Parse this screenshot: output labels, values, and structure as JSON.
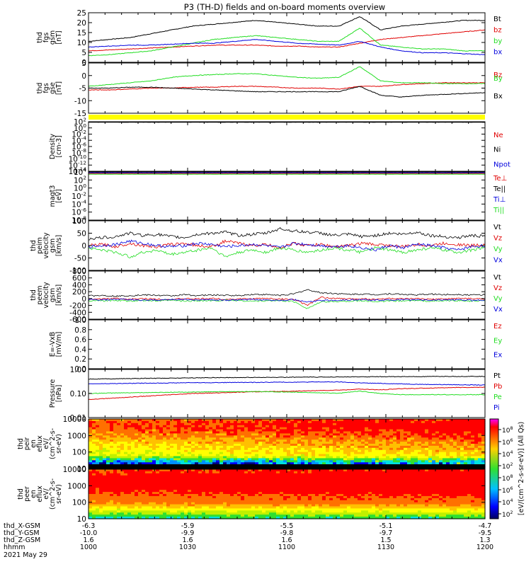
{
  "title": "P3 (TH-D) fields and on-board moments overview",
  "colors": {
    "black": "#000000",
    "red": "#e00000",
    "green": "#22dd22",
    "blue": "#0000dd",
    "yellow": "#ffff00"
  },
  "chart_data": [
    {
      "type": "line",
      "ylabel": [
        "thd",
        "fgs",
        "gsm",
        "[nT]"
      ],
      "yticks": [
        "25",
        "20",
        "15",
        "10",
        "5",
        "0"
      ],
      "ylim": [
        0,
        26
      ],
      "legend": [
        "Bt",
        "bz",
        "by",
        "bx"
      ],
      "series": [
        {
          "name": "Bt",
          "color": "#000000",
          "values": [
            11,
            12,
            13,
            15,
            17,
            19,
            20,
            21,
            22,
            21,
            20,
            19,
            19,
            24,
            17,
            19,
            20,
            21,
            22,
            22
          ]
        },
        {
          "name": "bz",
          "color": "#e00000",
          "values": [
            6,
            6.5,
            7,
            7.5,
            8,
            8.5,
            9,
            9,
            9,
            8.5,
            8.5,
            8,
            8,
            10,
            12,
            13,
            14,
            15,
            16,
            17
          ]
        },
        {
          "name": "by",
          "color": "#22dd22",
          "values": [
            3.5,
            4,
            5,
            6,
            8,
            10,
            12,
            13,
            14,
            13,
            12,
            11,
            11,
            18,
            9,
            8,
            7,
            7,
            6,
            6
          ]
        },
        {
          "name": "bx",
          "color": "#0000dd",
          "values": [
            8,
            8.5,
            9,
            9,
            9.5,
            10,
            10,
            11,
            12,
            11,
            10,
            9.5,
            9,
            11,
            8,
            6,
            5,
            5,
            4.5,
            4
          ]
        }
      ]
    },
    {
      "type": "line",
      "ylabel": [
        "thd",
        "fgs",
        "gse",
        "[nT]"
      ],
      "yticks": [
        "5",
        "0",
        "-5",
        "-10",
        "-15"
      ],
      "ylim": [
        -18,
        10
      ],
      "legend": [
        "Bz",
        "By",
        "Bx"
      ],
      "series": [
        {
          "name": "Bz",
          "color": "#e00000",
          "values": [
            -5,
            -5,
            -4.5,
            -4,
            -4,
            -3.5,
            -3.5,
            -3,
            -3,
            -3.5,
            -4,
            -4,
            -4.5,
            -3,
            -3,
            -2,
            -1.5,
            -1,
            -1,
            -1
          ]
        },
        {
          "name": "By",
          "color": "#22dd22",
          "values": [
            -3,
            -2,
            -1,
            0,
            2,
            3,
            3.5,
            4,
            4,
            3,
            2,
            1.5,
            2,
            8,
            0,
            -1,
            -1,
            -1.5,
            -1.5,
            -1.5
          ]
        },
        {
          "name": "Bx",
          "color": "#000000",
          "values": [
            -4,
            -4,
            -3.5,
            -3.5,
            -4,
            -4.5,
            -5,
            -5.5,
            -6,
            -6,
            -6,
            -6,
            -6,
            -3,
            -8,
            -9,
            -8,
            -7.5,
            -7,
            -6.5
          ]
        }
      ]
    },
    {
      "type": "line",
      "ylabel": [
        "Density",
        "[cm-3]"
      ],
      "yticks": [
        "10^2",
        "10^0",
        "10^-2",
        "10^-4",
        "10^-6",
        "10^-8",
        "10^-10",
        "10^-12",
        "10^-14"
      ],
      "ylim": [
        -15,
        2
      ],
      "yscale": "log",
      "legend": [
        "Ne",
        "Ni",
        "Npot"
      ],
      "series": [
        {
          "name": "Ne",
          "color": "#e00000",
          "values": [
            1.9,
            1.9,
            1.9,
            1.9,
            1.9,
            1.9,
            1.9,
            1.9,
            1.9,
            1.9,
            1.9,
            1.9,
            1.9,
            1.9,
            1.9,
            1.9,
            1.9,
            1.9,
            1.9,
            1.9
          ]
        },
        {
          "name": "Ni",
          "color": "#000000",
          "values": [
            1.8,
            1.8,
            1.8,
            1.8,
            1.8,
            1.8,
            1.8,
            1.8,
            1.8,
            1.8,
            1.8,
            1.8,
            1.8,
            1.8,
            1.8,
            1.8,
            1.8,
            1.8,
            1.8,
            1.8
          ]
        }
      ]
    },
    {
      "type": "line",
      "ylabel": [
        "magt3",
        "[eV]"
      ],
      "yticks": [
        "10^4",
        "10^2",
        "10^0",
        "10^-2",
        "10^-4",
        "10^-6",
        "10^-8"
      ],
      "ylim": [
        -9,
        4
      ],
      "yscale": "log",
      "legend": [
        "Te⊥",
        "Te||",
        "Ti⊥",
        "Ti||"
      ],
      "series": [
        {
          "name": "Te⊥",
          "color": "#e00000",
          "values": [
            3.6,
            3.6,
            3.6,
            3.6,
            3.6,
            3.6,
            3.6,
            3.6,
            3.6,
            3.6,
            3.6,
            3.6,
            3.6,
            3.6,
            3.6,
            3.6,
            3.6,
            3.6,
            3.6,
            3.6
          ]
        },
        {
          "name": "Ti⊥",
          "color": "#0000dd",
          "values": [
            3.8,
            3.8,
            3.8,
            3.8,
            3.8,
            3.8,
            3.8,
            3.8,
            3.8,
            3.8,
            3.8,
            3.8,
            3.8,
            3.8,
            3.8,
            3.8,
            3.8,
            3.8,
            3.8,
            3.8
          ]
        },
        {
          "name": "Ti||",
          "color": "#22dd22",
          "values": [
            3.4,
            3.4,
            3.4,
            3.4,
            3.4,
            3.4,
            3.4,
            3.4,
            3.4,
            3.4,
            3.4,
            3.4,
            3.4,
            3.4,
            3.4,
            3.4,
            3.4,
            3.4,
            3.4,
            3.4
          ]
        }
      ]
    },
    {
      "type": "line",
      "ylabel": [
        "thd",
        "peim",
        "velocity",
        "gsm",
        "[km/s]"
      ],
      "yticks": [
        "100",
        "50",
        "0",
        "-50",
        "-100"
      ],
      "ylim": [
        -110,
        110
      ],
      "legend": [
        "Vt",
        "Vz",
        "Vy",
        "Vx"
      ],
      "series": [
        {
          "name": "Vt",
          "color": "#000000",
          "values": [
            30,
            35,
            40,
            55,
            45,
            50,
            40,
            35,
            50,
            55,
            60,
            45,
            50,
            55,
            75,
            65,
            60,
            55,
            45,
            50,
            40,
            45,
            55,
            50,
            60,
            45,
            40,
            35,
            45,
            40
          ]
        },
        {
          "name": "Vz",
          "color": "#e00000",
          "values": [
            0,
            5,
            -5,
            10,
            0,
            -5,
            5,
            10,
            0,
            -5,
            20,
            10,
            0,
            5,
            -10,
            10,
            0,
            5,
            -5,
            0,
            10,
            5,
            0,
            -5,
            5,
            0,
            10,
            5,
            0,
            5
          ]
        },
        {
          "name": "Vy",
          "color": "#22dd22",
          "values": [
            -10,
            -20,
            -30,
            -50,
            -30,
            -20,
            -40,
            -30,
            -20,
            -10,
            -50,
            -30,
            -20,
            -30,
            -10,
            -20,
            -30,
            -20,
            -10,
            -20,
            -30,
            -10,
            -20,
            -30,
            -20,
            -10,
            -20,
            -30,
            -20,
            -10
          ]
        },
        {
          "name": "Vx",
          "color": "#0000dd",
          "values": [
            -5,
            0,
            5,
            20,
            10,
            0,
            -5,
            0,
            10,
            5,
            -5,
            0,
            5,
            0,
            -10,
            10,
            5,
            0,
            -5,
            0,
            -10,
            -20,
            0,
            -10,
            5,
            0,
            -10,
            -20,
            -5,
            0
          ]
        }
      ]
    },
    {
      "type": "line",
      "ylabel": [
        "thd",
        "peem",
        "velocity",
        "gsm",
        "[km/s]"
      ],
      "yticks": [
        "800",
        "600",
        "400",
        "200",
        "0",
        "-200",
        "-400",
        "-600"
      ],
      "ylim": [
        -650,
        900
      ],
      "legend": [
        "Vt",
        "Vz",
        "Vy",
        "Vx"
      ],
      "series": [
        {
          "name": "Vt",
          "color": "#000000",
          "values": [
            100,
            120,
            90,
            110,
            130,
            120,
            100,
            140,
            110,
            130,
            120,
            110,
            150,
            140,
            120,
            160,
            300,
            200,
            180,
            150,
            160,
            140,
            170,
            150,
            130,
            160,
            140,
            150,
            130,
            140
          ]
        },
        {
          "name": "Vz",
          "color": "#e00000",
          "values": [
            -20,
            0,
            20,
            -10,
            10,
            0,
            -20,
            10,
            0,
            20,
            -10,
            0,
            10,
            20,
            0,
            -10,
            -200,
            50,
            20,
            0,
            10,
            -10,
            20,
            0,
            10,
            -10,
            0,
            20,
            10,
            0
          ]
        },
        {
          "name": "Vy",
          "color": "#22dd22",
          "values": [
            -50,
            -60,
            -40,
            -70,
            -50,
            -60,
            -40,
            -70,
            -50,
            -60,
            -40,
            -50,
            -70,
            -60,
            -50,
            -80,
            -300,
            -100,
            -80,
            -70,
            -60,
            -80,
            -70,
            -60,
            -50,
            -70,
            -60,
            -50,
            -70,
            -60
          ]
        },
        {
          "name": "Vx",
          "color": "#0000dd",
          "values": [
            -20,
            -30,
            -10,
            -20,
            -40,
            -30,
            -20,
            -10,
            -30,
            -20,
            -40,
            -30,
            -20,
            -30,
            -40,
            -20,
            -100,
            -50,
            -40,
            -30,
            -20,
            -40,
            -30,
            -20,
            -30,
            -40,
            -20,
            -30,
            -40,
            -30
          ]
        }
      ]
    },
    {
      "type": "line",
      "ylabel": [
        "E=-VxB",
        "[mV/m]"
      ],
      "yticks": [
        "1.0",
        "0.8",
        "0.6",
        "0.4",
        "0.2",
        "0.0"
      ],
      "ylim": [
        0,
        1
      ],
      "legend": [
        "Ez",
        "Ey",
        "Ex"
      ],
      "series": []
    },
    {
      "type": "line",
      "ylabel": [
        "Pressure",
        "[nPa]"
      ],
      "yticks": [
        "1.00",
        "0.10",
        "0.01"
      ],
      "ylim": [
        -2,
        0
      ],
      "yscale": "log",
      "legend": [
        "Pt",
        "Pb",
        "Pe",
        "Pi"
      ],
      "series": [
        {
          "name": "Pt",
          "color": "#000000",
          "values": [
            -0.4,
            -0.39,
            -0.38,
            -0.37,
            -0.36,
            -0.35,
            -0.34,
            -0.34,
            -0.33,
            -0.33,
            -0.32,
            -0.32,
            -0.31,
            -0.31,
            -0.3,
            -0.3,
            -0.3,
            -0.29,
            -0.29,
            -0.29
          ]
        },
        {
          "name": "Pb",
          "color": "#e00000",
          "values": [
            -1.25,
            -1.2,
            -1.15,
            -1.1,
            -1.05,
            -1.0,
            -0.98,
            -0.95,
            -0.93,
            -0.92,
            -0.9,
            -0.88,
            -0.86,
            -0.82,
            -0.85,
            -0.8,
            -0.78,
            -0.76,
            -0.75,
            -0.74
          ]
        },
        {
          "name": "Pe",
          "color": "#22dd22",
          "values": [
            -1.0,
            -0.98,
            -0.97,
            -0.96,
            -0.95,
            -0.94,
            -0.93,
            -0.92,
            -0.92,
            -0.93,
            -0.95,
            -0.97,
            -0.99,
            -0.9,
            -1.0,
            -1.05,
            -1.05,
            -1.05,
            -1.05,
            -1.05
          ]
        },
        {
          "name": "Pi",
          "color": "#0000dd",
          "values": [
            -0.6,
            -0.59,
            -0.58,
            -0.57,
            -0.56,
            -0.55,
            -0.55,
            -0.54,
            -0.54,
            -0.53,
            -0.53,
            -0.52,
            -0.52,
            -0.56,
            -0.58,
            -0.6,
            -0.62,
            -0.63,
            -0.64,
            -0.65
          ]
        }
      ]
    },
    {
      "type": "heatmap",
      "ylabel": [
        "thd",
        "peir",
        "en",
        "eflux",
        "eV/",
        "(cm^2-s-",
        "sr-eV)"
      ],
      "yticks": [
        "10000",
        "1000",
        "100",
        "10"
      ]
    },
    {
      "type": "heatmap",
      "ylabel": [
        "thd",
        "peer",
        "en",
        "eflux",
        "eV/",
        "(cm^2-s-",
        "sr-eV)"
      ],
      "yticks": [
        "10000",
        "1000",
        "100",
        "10"
      ]
    }
  ],
  "colorbar": {
    "ticks": [
      "10^8",
      "10^6",
      "10^4",
      "10^2",
      "10^8",
      "10^6",
      "10^4",
      "10^2"
    ],
    "label": "[eV/(cm^2-s-sr-eV)] (All Qs)"
  },
  "xaxis": {
    "rows": [
      {
        "label": "thd_X-GSM",
        "values": [
          "-6.3",
          "-5.9",
          "-5.5",
          "-5.1",
          "-4.7"
        ]
      },
      {
        "label": "thd_Y-GSM",
        "values": [
          "-10.0",
          "-9.9",
          "-9.8",
          "-9.7",
          "-9.5"
        ]
      },
      {
        "label": "thd_Z-GSM",
        "values": [
          "1.6",
          "1.6",
          "1.6",
          "1.5",
          "1.3"
        ]
      },
      {
        "label": "hhmm",
        "values": [
          "1000",
          "1030",
          "1100",
          "1130",
          "1200"
        ]
      }
    ],
    "date": "2021 May 29"
  }
}
